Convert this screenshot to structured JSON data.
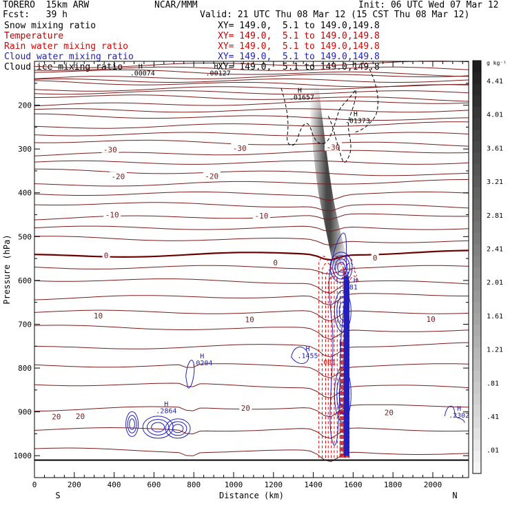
{
  "header": {
    "model": "TORERO  15km ARW",
    "org": "NCAR/MMM",
    "init": "Init: 06 UTC Wed 07 Mar 12",
    "fcst": "Fcst:   39 h",
    "valid": "Valid: 21 UTC Thu 08 Mar 12 (15 CST Thu 08 Mar 12)"
  },
  "fields": [
    {
      "name": "Snow mixing ratio",
      "xy": "XY= 149.0,  5.1 to 149.0,149.8",
      "color": "#000000"
    },
    {
      "name": "Temperature",
      "xy": "XY= 149.0,  5.1 to 149.0,149.8",
      "color": "#c00000"
    },
    {
      "name": "Rain water mixing ratio",
      "xy": "XY= 149.0,  5.1 to 149.0,149.8",
      "color": "#e00000"
    },
    {
      "name": "Cloud water mixing ratio",
      "xy": "XY= 149.0,  5.1 to 149.0,149.8",
      "color": "#2020c0"
    },
    {
      "name": "Cloud ice mixing ratio",
      "xy": "XY= 149.0,  5.1 to 149.0,149.8",
      "color": "#000000"
    }
  ],
  "colors": {
    "temperature": "#7a1a1a",
    "zero_isotherm": "#6a0000",
    "rain": "#e00000",
    "cloud_water": "#2020c0",
    "ice": "#000000"
  },
  "chart_data": {
    "type": "contour cross-section",
    "xlabel": "Distance (km)",
    "ylabel": "Pressure (hPa)",
    "xlim": [
      0,
      2180
    ],
    "ylim": [
      1050,
      100
    ],
    "x_ticks": [
      0,
      200,
      400,
      600,
      800,
      1000,
      1200,
      1400,
      1600,
      1800,
      2000
    ],
    "y_ticks": [
      200,
      300,
      400,
      500,
      600,
      700,
      800,
      900,
      1000
    ],
    "left_end": "S",
    "right_end": "N",
    "colorbar": {
      "unit": "g kg⁻¹",
      "labels": [
        ".01",
        ".41",
        ".81",
        "1.21",
        "1.61",
        "2.01",
        "2.41",
        "2.81",
        "3.21",
        "3.61",
        "4.01",
        "4.41"
      ]
    },
    "temperature_labels": [
      {
        "text": "-30",
        "x": 380,
        "p": 301
      },
      {
        "text": "-30",
        "x": 1030,
        "p": 298
      },
      {
        "text": "-30",
        "x": 1500,
        "p": 296
      },
      {
        "text": "-20",
        "x": 420,
        "p": 363
      },
      {
        "text": "-20",
        "x": 890,
        "p": 362
      },
      {
        "text": "-10",
        "x": 390,
        "p": 450
      },
      {
        "text": "-10",
        "x": 1140,
        "p": 452
      },
      {
        "text": "0",
        "x": 360,
        "p": 543
      },
      {
        "text": "0",
        "x": 1210,
        "p": 559
      },
      {
        "text": "0",
        "x": 1710,
        "p": 548
      },
      {
        "text": "10",
        "x": 320,
        "p": 680
      },
      {
        "text": "10",
        "x": 1080,
        "p": 689
      },
      {
        "text": "10",
        "x": 1990,
        "p": 688
      },
      {
        "text": "20",
        "x": 110,
        "p": 911
      },
      {
        "text": "20",
        "x": 230,
        "p": 910
      },
      {
        "text": "20",
        "x": 1060,
        "p": 891
      },
      {
        "text": "20",
        "x": 1780,
        "p": 901
      }
    ],
    "maxima_labels": [
      {
        "text": ".00074",
        "x": 480,
        "p": 132,
        "color": "#000000"
      },
      {
        "text": ".00127",
        "x": 860,
        "p": 132,
        "color": "#000000"
      },
      {
        "text": ".01657",
        "x": 1280,
        "p": 187,
        "color": "#000000"
      },
      {
        "text": ".01373",
        "x": 1560,
        "p": 241,
        "color": "#000000"
      },
      {
        "text": ".0204",
        "x": 790,
        "p": 794,
        "color": "#2020c0"
      },
      {
        "text": ".1455",
        "x": 1320,
        "p": 777,
        "color": "#2020c0"
      },
      {
        "text": ".2864",
        "x": 610,
        "p": 903,
        "color": "#2020c0"
      },
      {
        "text": ".2302",
        "x": 2080,
        "p": 913,
        "color": "#2020c0"
      },
      {
        "text": ".81",
        "x": 1560,
        "p": 621,
        "color": "#2020c0"
      }
    ],
    "rain_labels": [
      {
        "text": ".001",
        "x": 1430,
        "p": 792
      },
      {
        "text": ".001",
        "x": 1500,
        "p": 908
      }
    ]
  }
}
